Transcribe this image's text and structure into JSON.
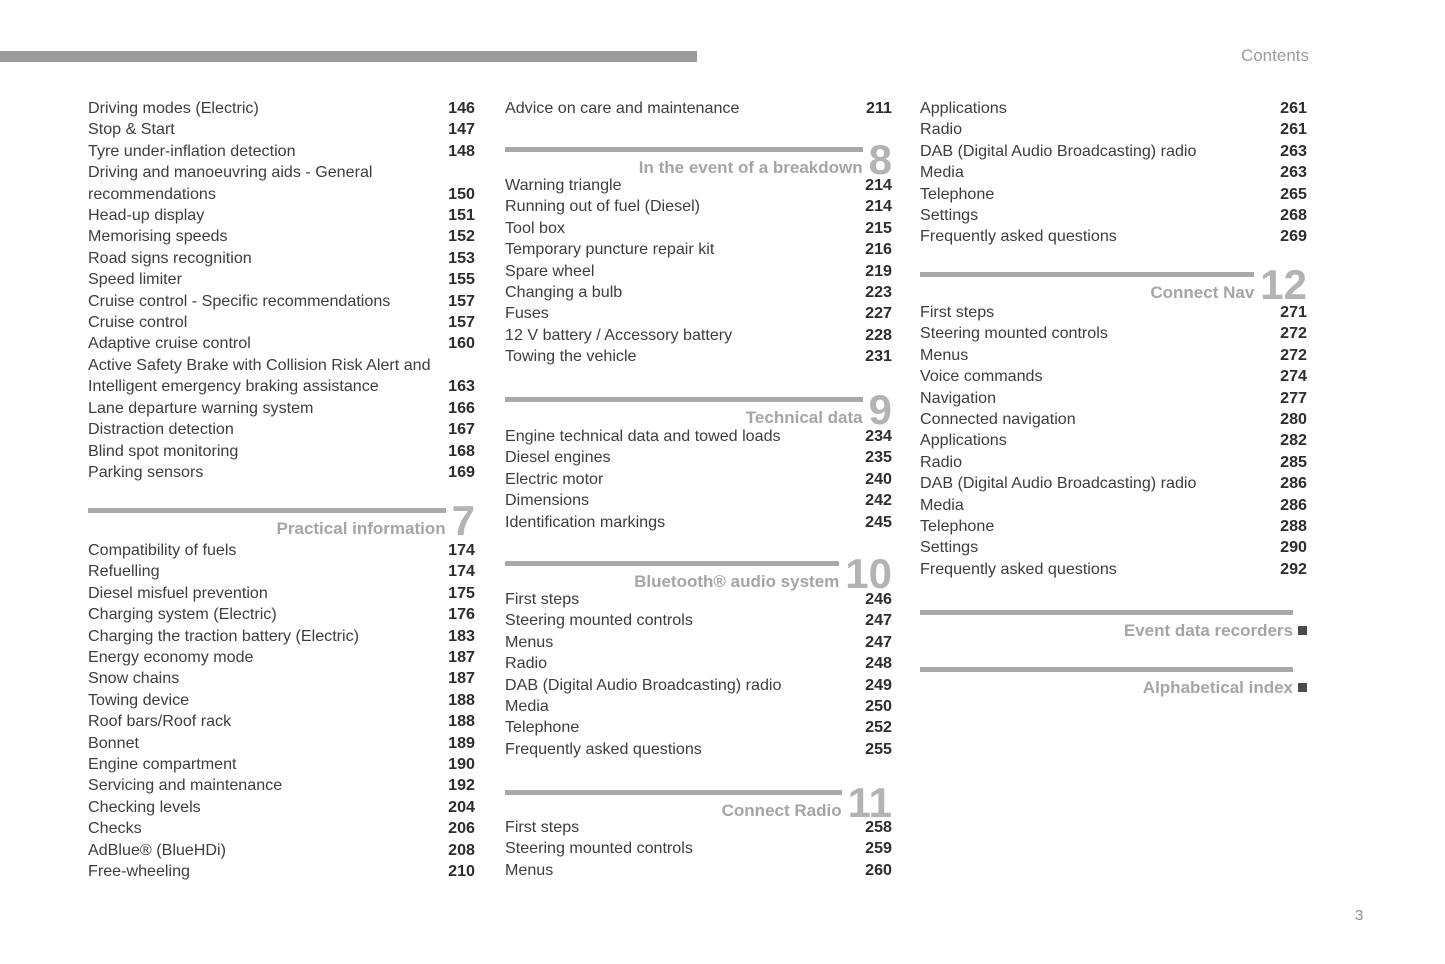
{
  "page": {
    "header_label": "Contents",
    "page_number": "3"
  },
  "colors": {
    "text": "#3d3d3d",
    "page_number_text": "#2d2d2d",
    "accent_gray": "#a5a5a5"
  },
  "columns": [
    {
      "blocks": [
        {
          "type": "entries",
          "items": [
            {
              "label": "Driving modes (Electric)",
              "page": "146"
            },
            {
              "label": "Stop & Start",
              "page": "147"
            },
            {
              "label": "Tyre under-inflation detection",
              "page": "148"
            },
            {
              "label": "Driving and manoeuvring aids - General\nrecommendations",
              "page": "150"
            },
            {
              "label": "Head-up display",
              "page": "151"
            },
            {
              "label": "Memorising speeds",
              "page": "152"
            },
            {
              "label": "Road signs recognition",
              "page": "153"
            },
            {
              "label": "Speed limiter",
              "page": "155"
            },
            {
              "label": "Cruise control - Specific recommendations",
              "page": "157"
            },
            {
              "label": "Cruise control",
              "page": "157"
            },
            {
              "label": "Adaptive cruise control",
              "page": "160"
            },
            {
              "label": "Active Safety Brake with Collision Risk Alert and\nIntelligent emergency braking assistance",
              "page": "163"
            },
            {
              "label": "Lane departure warning system",
              "page": "166"
            },
            {
              "label": "Distraction detection",
              "page": "167"
            },
            {
              "label": "Blind spot monitoring",
              "page": "168"
            },
            {
              "label": "Parking sensors",
              "page": "169"
            }
          ]
        },
        {
          "type": "section",
          "title": "Practical information",
          "number": "7"
        },
        {
          "type": "entries",
          "items": [
            {
              "label": "Compatibility of fuels",
              "page": "174"
            },
            {
              "label": "Refuelling",
              "page": "174"
            },
            {
              "label": "Diesel misfuel prevention",
              "page": "175"
            },
            {
              "label": "Charging system (Electric)",
              "page": "176"
            },
            {
              "label": "Charging the traction battery (Electric)",
              "page": "183"
            },
            {
              "label": "Energy economy mode",
              "page": "187"
            },
            {
              "label": "Snow chains",
              "page": "187"
            },
            {
              "label": "Towing device",
              "page": "188"
            },
            {
              "label": "Roof bars/Roof rack",
              "page": "188"
            },
            {
              "label": "Bonnet",
              "page": "189"
            },
            {
              "label": "Engine compartment",
              "page": "190"
            },
            {
              "label": "Servicing and maintenance",
              "page": "192"
            },
            {
              "label": "Checking levels",
              "page": "204"
            },
            {
              "label": "Checks",
              "page": "206"
            },
            {
              "label": "AdBlue® (BlueHDi)",
              "page": "208"
            },
            {
              "label": "Free-wheeling",
              "page": "210"
            }
          ]
        }
      ]
    },
    {
      "blocks": [
        {
          "type": "entries",
          "items": [
            {
              "label": "Advice on care and maintenance",
              "page": "211"
            }
          ]
        },
        {
          "type": "section",
          "title": "In the event of a breakdown",
          "number": "8"
        },
        {
          "type": "entries",
          "items": [
            {
              "label": "Warning triangle",
              "page": "214"
            },
            {
              "label": "Running out of fuel (Diesel)",
              "page": "214"
            },
            {
              "label": "Tool box",
              "page": "215"
            },
            {
              "label": "Temporary puncture repair kit",
              "page": "216"
            },
            {
              "label": "Spare wheel",
              "page": "219"
            },
            {
              "label": "Changing a bulb",
              "page": "223"
            },
            {
              "label": "Fuses",
              "page": "227"
            },
            {
              "label": "12 V battery / Accessory battery",
              "page": "228"
            },
            {
              "label": "Towing the vehicle",
              "page": "231"
            }
          ]
        },
        {
          "type": "section",
          "title": "Technical data",
          "number": "9"
        },
        {
          "type": "entries",
          "items": [
            {
              "label": "Engine technical data and towed loads",
              "page": "234"
            },
            {
              "label": "Diesel engines",
              "page": "235"
            },
            {
              "label": "Electric motor",
              "page": "240"
            },
            {
              "label": "Dimensions",
              "page": "242"
            },
            {
              "label": "Identification markings",
              "page": "245"
            }
          ]
        },
        {
          "type": "section",
          "title": "Bluetooth® audio system",
          "number": "10"
        },
        {
          "type": "entries",
          "items": [
            {
              "label": "First steps",
              "page": "246"
            },
            {
              "label": "Steering mounted controls",
              "page": "247"
            },
            {
              "label": "Menus",
              "page": "247"
            },
            {
              "label": "Radio",
              "page": "248"
            },
            {
              "label": "DAB (Digital Audio Broadcasting) radio",
              "page": "249"
            },
            {
              "label": "Media",
              "page": "250"
            },
            {
              "label": "Telephone",
              "page": "252"
            },
            {
              "label": "Frequently asked questions",
              "page": "255"
            }
          ]
        },
        {
          "type": "section",
          "title": "Connect Radio",
          "number": "11"
        },
        {
          "type": "entries",
          "items": [
            {
              "label": "First steps",
              "page": "258"
            },
            {
              "label": "Steering mounted controls",
              "page": "259"
            },
            {
              "label": "Menus",
              "page": "260"
            }
          ]
        }
      ]
    },
    {
      "blocks": [
        {
          "type": "entries",
          "items": [
            {
              "label": "Applications",
              "page": "261"
            },
            {
              "label": "Radio",
              "page": "261"
            },
            {
              "label": "DAB (Digital Audio Broadcasting) radio",
              "page": "263"
            },
            {
              "label": "Media",
              "page": "263"
            },
            {
              "label": "Telephone",
              "page": "265"
            },
            {
              "label": "Settings",
              "page": "268"
            },
            {
              "label": "Frequently asked questions",
              "page": "269"
            }
          ]
        },
        {
          "type": "section",
          "title": "Connect Nav",
          "number": "12"
        },
        {
          "type": "entries",
          "items": [
            {
              "label": "First steps",
              "page": "271"
            },
            {
              "label": "Steering mounted controls",
              "page": "272"
            },
            {
              "label": "Menus",
              "page": "272"
            },
            {
              "label": "Voice commands",
              "page": "274"
            },
            {
              "label": "Navigation",
              "page": "277"
            },
            {
              "label": "Connected navigation",
              "page": "280"
            },
            {
              "label": "Applications",
              "page": "282"
            },
            {
              "label": "Radio",
              "page": "285"
            },
            {
              "label": "DAB (Digital Audio Broadcasting) radio",
              "page": "286"
            },
            {
              "label": "Media",
              "page": "286"
            },
            {
              "label": "Telephone",
              "page": "288"
            },
            {
              "label": "Settings",
              "page": "290"
            },
            {
              "label": "Frequently asked questions",
              "page": "292"
            }
          ]
        },
        {
          "type": "section_end",
          "title": "Event data recorders"
        },
        {
          "type": "section_end",
          "title": "Alphabetical index"
        }
      ]
    }
  ]
}
